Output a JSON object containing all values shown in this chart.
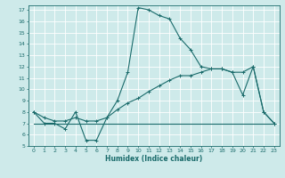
{
  "title": "",
  "xlabel": "Humidex (Indice chaleur)",
  "bg_color": "#ceeaea",
  "line_color": "#1a6b6b",
  "grid_color": "#b8d8d8",
  "xlim": [
    -0.5,
    23.5
  ],
  "ylim": [
    5,
    17.4
  ],
  "xticks": [
    0,
    1,
    2,
    3,
    4,
    5,
    6,
    7,
    8,
    9,
    10,
    11,
    12,
    13,
    14,
    15,
    16,
    17,
    18,
    19,
    20,
    21,
    22,
    23
  ],
  "yticks": [
    5,
    6,
    7,
    8,
    9,
    10,
    11,
    12,
    13,
    14,
    15,
    16,
    17
  ],
  "line1_x": [
    0,
    1,
    2,
    3,
    4,
    5,
    6,
    7,
    8,
    9,
    10,
    11,
    12,
    13,
    14,
    15,
    16,
    17,
    18,
    19,
    20,
    21,
    22,
    23
  ],
  "line1_y": [
    8,
    7,
    7,
    6.5,
    8,
    5.5,
    5.5,
    7.5,
    9,
    11.5,
    17.2,
    17,
    16.5,
    16.2,
    14.5,
    13.5,
    12,
    11.8,
    11.8,
    11.5,
    9.5,
    12,
    8,
    7
  ],
  "line2_x": [
    0,
    1,
    2,
    3,
    4,
    5,
    6,
    7,
    8,
    9,
    10,
    11,
    12,
    13,
    14,
    15,
    16,
    17,
    18,
    19,
    20,
    21,
    22,
    23
  ],
  "line2_y": [
    8,
    7.5,
    7.2,
    7.2,
    7.5,
    7.2,
    7.2,
    7.5,
    8.2,
    8.8,
    9.2,
    9.8,
    10.3,
    10.8,
    11.2,
    11.2,
    11.5,
    11.8,
    11.8,
    11.5,
    11.5,
    12,
    8,
    7
  ],
  "line3_x": [
    0,
    1,
    2,
    3,
    4,
    5,
    6,
    7,
    8,
    9,
    10,
    11,
    12,
    13,
    14,
    15,
    16,
    17,
    18,
    19,
    20,
    21,
    22,
    23
  ],
  "line3_y": [
    7,
    7,
    7,
    7,
    7,
    7,
    7,
    7,
    7,
    7,
    7,
    7,
    7,
    7,
    7,
    7,
    7,
    7,
    7,
    7,
    7,
    7,
    7,
    7
  ]
}
